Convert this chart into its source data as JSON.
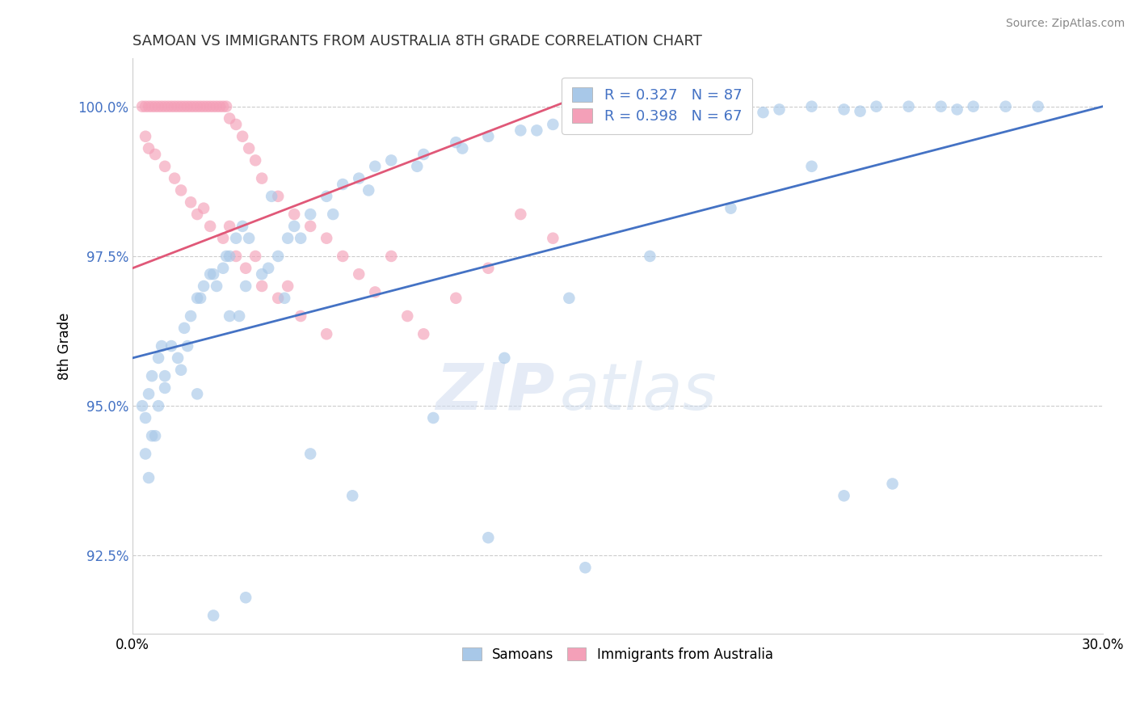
{
  "title": "SAMOAN VS IMMIGRANTS FROM AUSTRALIA 8TH GRADE CORRELATION CHART",
  "source": "Source: ZipAtlas.com",
  "ylabel": "8th Grade",
  "ymin": 91.2,
  "ymax": 100.8,
  "xmin": 0.0,
  "xmax": 30.0,
  "yticks": [
    92.5,
    95.0,
    97.5,
    100.0
  ],
  "legend_blue_r": "R = 0.327",
  "legend_blue_n": "N = 87",
  "legend_pink_r": "R = 0.398",
  "legend_pink_n": "N = 67",
  "legend_blue_label": "Samoans",
  "legend_pink_label": "Immigrants from Australia",
  "blue_color": "#A8C8E8",
  "pink_color": "#F4A0B8",
  "blue_line_color": "#4472C4",
  "pink_line_color": "#E05878",
  "watermark_zip": "ZIP",
  "watermark_atlas": "atlas",
  "blue_trend_x0": 0.0,
  "blue_trend_y0": 95.8,
  "blue_trend_x1": 30.0,
  "blue_trend_y1": 100.0,
  "pink_trend_x0": 0.0,
  "pink_trend_y0": 97.3,
  "pink_trend_x1": 13.5,
  "pink_trend_y1": 100.1,
  "samoans_x": [
    0.3,
    0.4,
    0.5,
    0.6,
    0.7,
    0.8,
    0.9,
    1.0,
    0.4,
    0.5,
    0.6,
    0.8,
    1.0,
    1.2,
    1.4,
    1.6,
    1.8,
    2.0,
    2.0,
    2.2,
    2.4,
    2.6,
    2.8,
    3.0,
    3.2,
    3.4,
    3.0,
    3.5,
    4.0,
    4.5,
    4.8,
    5.0,
    5.5,
    6.0,
    6.5,
    7.0,
    7.5,
    8.0,
    9.0,
    10.0,
    11.0,
    12.0,
    13.0,
    14.0,
    15.0,
    16.0,
    17.0,
    18.0,
    19.0,
    20.0,
    21.0,
    22.0,
    23.0,
    24.0,
    25.0,
    26.0,
    27.0,
    28.0,
    4.2,
    5.2,
    6.2,
    7.3,
    8.8,
    10.2,
    12.5,
    14.5,
    17.0,
    19.5,
    22.5,
    25.5,
    3.3,
    4.7,
    6.8,
    9.3,
    11.5,
    13.5,
    16.0,
    18.5,
    21.0,
    1.5,
    1.7,
    2.1,
    2.5,
    2.9,
    3.6,
    4.3
  ],
  "samoans_y": [
    95.0,
    94.8,
    95.2,
    95.5,
    94.5,
    95.8,
    96.0,
    95.3,
    94.2,
    93.8,
    94.5,
    95.0,
    95.5,
    96.0,
    95.8,
    96.3,
    96.5,
    96.8,
    95.2,
    97.0,
    97.2,
    97.0,
    97.3,
    97.5,
    97.8,
    98.0,
    96.5,
    97.0,
    97.2,
    97.5,
    97.8,
    98.0,
    98.2,
    98.5,
    98.7,
    98.8,
    99.0,
    99.1,
    99.2,
    99.4,
    99.5,
    99.6,
    99.7,
    99.8,
    99.8,
    99.9,
    99.85,
    99.9,
    99.92,
    99.95,
    100.0,
    99.95,
    100.0,
    100.0,
    100.0,
    100.0,
    100.0,
    100.0,
    97.3,
    97.8,
    98.2,
    98.6,
    99.0,
    99.3,
    99.6,
    99.7,
    99.85,
    99.9,
    99.92,
    99.95,
    96.5,
    96.8,
    93.5,
    94.8,
    95.8,
    96.8,
    97.5,
    98.3,
    99.0,
    95.6,
    96.0,
    96.8,
    97.2,
    97.5,
    97.8,
    98.5
  ],
  "immigrants_x": [
    0.3,
    0.4,
    0.5,
    0.6,
    0.7,
    0.8,
    0.9,
    1.0,
    1.1,
    1.2,
    1.3,
    1.4,
    1.5,
    1.6,
    1.7,
    1.8,
    1.9,
    2.0,
    2.1,
    2.2,
    2.3,
    2.4,
    2.5,
    2.6,
    2.7,
    2.8,
    2.9,
    3.0,
    3.2,
    3.4,
    3.6,
    3.8,
    4.0,
    4.5,
    5.0,
    5.5,
    6.0,
    6.5,
    7.0,
    7.5,
    8.0,
    8.5,
    9.0,
    10.0,
    11.0,
    12.0,
    13.0,
    0.4,
    0.5,
    0.7,
    1.0,
    1.3,
    1.5,
    1.8,
    2.0,
    2.4,
    2.8,
    3.2,
    3.5,
    4.0,
    4.5,
    5.2,
    6.0,
    2.2,
    3.0,
    3.8,
    4.8
  ],
  "immigrants_y": [
    100.0,
    100.0,
    100.0,
    100.0,
    100.0,
    100.0,
    100.0,
    100.0,
    100.0,
    100.0,
    100.0,
    100.0,
    100.0,
    100.0,
    100.0,
    100.0,
    100.0,
    100.0,
    100.0,
    100.0,
    100.0,
    100.0,
    100.0,
    100.0,
    100.0,
    100.0,
    100.0,
    99.8,
    99.7,
    99.5,
    99.3,
    99.1,
    98.8,
    98.5,
    98.2,
    98.0,
    97.8,
    97.5,
    97.2,
    96.9,
    97.5,
    96.5,
    96.2,
    96.8,
    97.3,
    98.2,
    97.8,
    99.5,
    99.3,
    99.2,
    99.0,
    98.8,
    98.6,
    98.4,
    98.2,
    98.0,
    97.8,
    97.5,
    97.3,
    97.0,
    96.8,
    96.5,
    96.2,
    98.3,
    98.0,
    97.5,
    97.0
  ],
  "blue_isolated_low": [
    [
      5.5,
      94.2
    ],
    [
      11.0,
      92.8
    ],
    [
      14.0,
      92.3
    ],
    [
      2.5,
      91.5
    ],
    [
      3.5,
      91.8
    ],
    [
      22.0,
      93.5
    ],
    [
      23.5,
      93.7
    ]
  ],
  "dot_size": 110
}
